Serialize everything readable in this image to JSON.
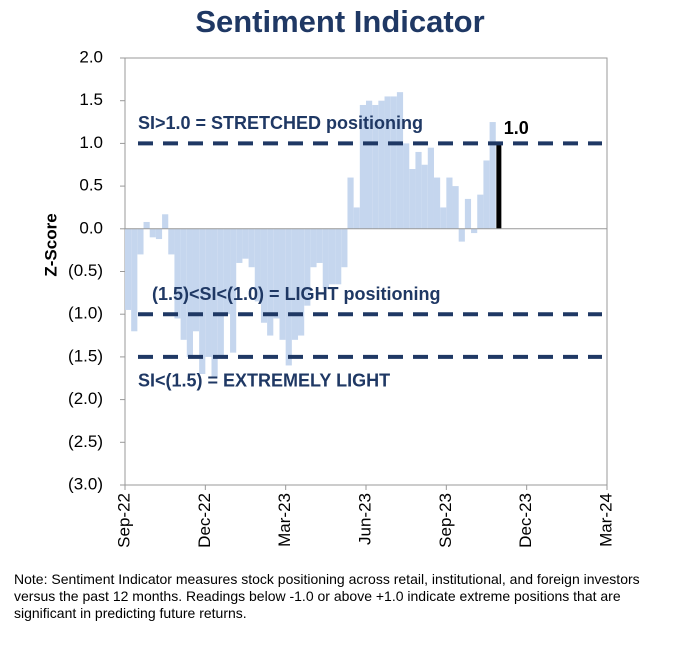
{
  "chart_data": {
    "type": "bar",
    "title": "Sentiment Indicator",
    "y_label": "Z-Score",
    "categories": [
      "Sep-22",
      null,
      null,
      null,
      null,
      null,
      null,
      null,
      null,
      null,
      null,
      null,
      null,
      "Dec-22",
      null,
      null,
      null,
      null,
      null,
      null,
      null,
      null,
      null,
      null,
      null,
      null,
      "Mar-23",
      null,
      null,
      null,
      null,
      null,
      null,
      null,
      null,
      null,
      null,
      null,
      null,
      "Jun-23",
      null,
      null,
      null,
      null,
      null,
      null,
      null,
      null,
      null,
      null,
      null,
      null,
      "Sep-23",
      null,
      null,
      null,
      null,
      null,
      null,
      null,
      null,
      null,
      null,
      null,
      null,
      "Dec-23",
      null,
      null,
      null,
      null,
      null,
      null,
      null,
      null,
      null,
      null,
      null,
      null,
      "Mar-24"
    ],
    "series": [
      {
        "color": "#c5d6ee",
        "values": [
          -0.95,
          -1.2,
          -0.3,
          0.08,
          -0.1,
          -0.12,
          0.17,
          -0.3,
          -1.05,
          -1.3,
          -1.5,
          -1.2,
          -1.7,
          -1.5,
          -1.75,
          -1.5,
          -1.0,
          -1.45,
          -0.4,
          -0.35,
          -0.45,
          -0.85,
          -1.1,
          -1.25,
          -1.05,
          -1.3,
          -1.6,
          -1.3,
          -1.25,
          -0.9,
          -0.45,
          -0.4,
          -0.7,
          -0.65,
          -0.65,
          -0.45,
          0.6,
          0.25,
          1.45,
          1.5,
          1.45,
          1.5,
          1.55,
          1.55,
          1.6,
          1.0,
          0.7,
          0.9,
          0.75,
          0.95,
          0.6,
          0.25,
          0.6,
          0.5,
          -0.15,
          0.35,
          -0.05,
          0.4,
          0.8,
          1.25,
          null,
          null,
          null,
          null,
          null,
          null,
          null,
          null,
          null,
          null,
          null,
          null,
          null,
          null,
          null,
          null,
          null,
          null,
          null
        ]
      },
      {
        "color": "#000000",
        "values": [
          null,
          null,
          null,
          null,
          null,
          null,
          null,
          null,
          null,
          null,
          null,
          null,
          null,
          null,
          null,
          null,
          null,
          null,
          null,
          null,
          null,
          null,
          null,
          null,
          null,
          null,
          null,
          null,
          null,
          null,
          null,
          null,
          null,
          null,
          null,
          null,
          null,
          null,
          null,
          null,
          null,
          null,
          null,
          null,
          null,
          null,
          null,
          null,
          null,
          null,
          null,
          null,
          null,
          null,
          null,
          null,
          null,
          null,
          null,
          null,
          1.0,
          null,
          null,
          null,
          null,
          null,
          null,
          null,
          null,
          null,
          null,
          null,
          null,
          null,
          null,
          null,
          null,
          null,
          null
        ],
        "value_labels": [
          null,
          null,
          null,
          null,
          null,
          null,
          null,
          null,
          null,
          null,
          null,
          null,
          null,
          null,
          null,
          null,
          null,
          null,
          null,
          null,
          null,
          null,
          null,
          null,
          null,
          null,
          null,
          null,
          null,
          null,
          null,
          null,
          null,
          null,
          null,
          null,
          null,
          null,
          null,
          null,
          null,
          null,
          null,
          null,
          null,
          null,
          null,
          null,
          null,
          null,
          null,
          null,
          null,
          null,
          null,
          null,
          null,
          null,
          null,
          null,
          "1.0",
          null,
          null,
          null,
          null,
          null,
          null,
          null,
          null,
          null,
          null,
          null,
          null,
          null,
          null,
          null,
          null,
          null,
          null
        ]
      }
    ],
    "ylim": [
      -3,
      2
    ],
    "yticks": [
      {
        "value": 2,
        "label": "2.0"
      },
      {
        "value": 1.5,
        "label": "1.5"
      },
      {
        "value": 1,
        "label": "1.0"
      },
      {
        "value": 0.5,
        "label": "0.5"
      },
      {
        "value": 0,
        "label": "0.0"
      },
      {
        "value": -0.5,
        "label": "(0.5)"
      },
      {
        "value": -1,
        "label": "(1.0)"
      },
      {
        "value": -1.5,
        "label": "(1.5)"
      },
      {
        "value": -2,
        "label": "(2.0)"
      },
      {
        "value": -2.5,
        "label": "(2.5)"
      },
      {
        "value": -3,
        "label": "(3.0)"
      }
    ],
    "reference_lines": [
      {
        "value": 1,
        "label": "SI>1.0 = STRETCHED positioning",
        "label_side": "above",
        "color": "#1f3864"
      },
      {
        "value": -1,
        "label": "(1.5)<SI<(1.0) = LIGHT positioning",
        "label_side": "above",
        "color": "#1f3864"
      },
      {
        "value": -1.5,
        "label": "SI<(1.5) = EXTREMELY LIGHT",
        "label_side": "below",
        "color": "#1f3864"
      }
    ],
    "note": "Note: Sentiment Indicator measures stock positioning across retail, institutional, and foreign investors versus the past 12 months. Readings below -1.0 or above +1.0 indicate extreme positions that are significant in predicting future returns."
  }
}
